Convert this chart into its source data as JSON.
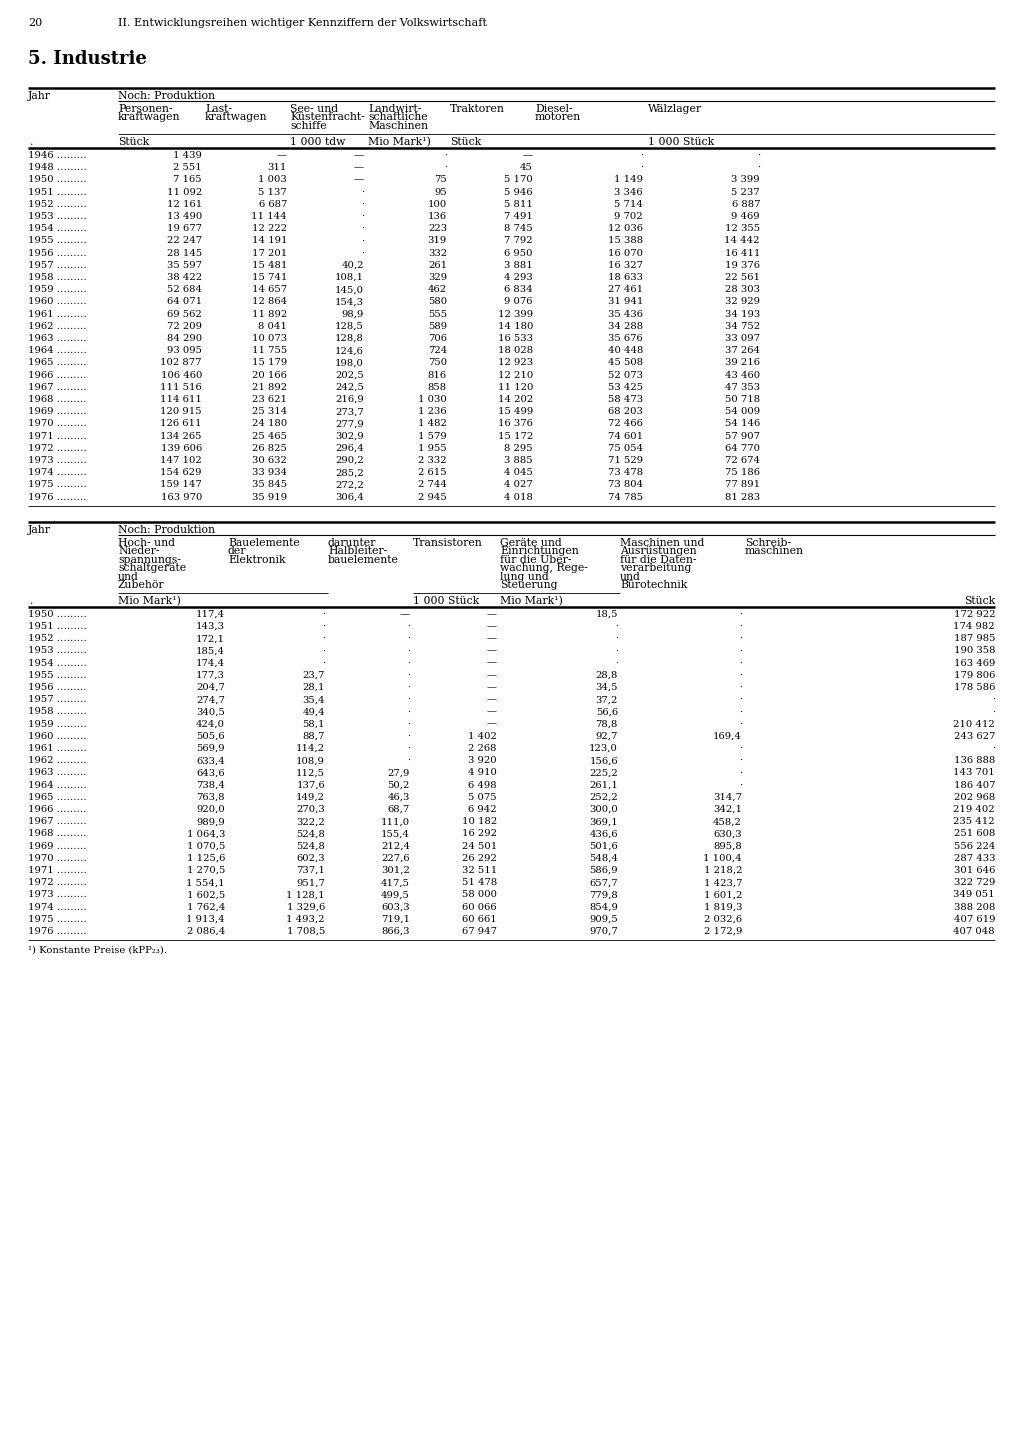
{
  "page_number": "20",
  "page_header": "II. Entwicklungsreihen wichtiger Kennziffern der Volkswirtschaft",
  "section_title": "5. Industrie",
  "table1_rows": [
    [
      "1946",
      "1 439",
      "—",
      "—",
      "·",
      "—",
      "·",
      "·"
    ],
    [
      "1948",
      "2 551",
      "311",
      "—",
      "·",
      "45",
      "·",
      "·"
    ],
    [
      "1950",
      "7 165",
      "1 003",
      "—",
      "75",
      "5 170",
      "1 149",
      "3 399"
    ],
    [
      "1951",
      "11 092",
      "5 137",
      "·",
      "95",
      "5 946",
      "3 346",
      "5 237"
    ],
    [
      "1952",
      "12 161",
      "6 687",
      "·",
      "100",
      "5 811",
      "5 714",
      "6 887"
    ],
    [
      "1953",
      "13 490",
      "11 144",
      "·",
      "136",
      "7 491",
      "9 702",
      "9 469"
    ],
    [
      "1954",
      "19 677",
      "12 222",
      "·",
      "223",
      "8 745",
      "12 036",
      "12 355"
    ],
    [
      "1955",
      "22 247",
      "14 191",
      "·",
      "319",
      "7 792",
      "15 388",
      "14 442"
    ],
    [
      "1956",
      "28 145",
      "17 201",
      "·",
      "332",
      "6 950",
      "16 070",
      "16 411"
    ],
    [
      "1957",
      "35 597",
      "15 481",
      "40,2",
      "261",
      "3 881",
      "16 327",
      "19 376"
    ],
    [
      "1958",
      "38 422",
      "15 741",
      "108,1",
      "329",
      "4 293",
      "18 633",
      "22 561"
    ],
    [
      "1959",
      "52 684",
      "14 657",
      "145,0",
      "462",
      "6 834",
      "27 461",
      "28 303"
    ],
    [
      "1960",
      "64 071",
      "12 864",
      "154,3",
      "580",
      "9 076",
      "31 941",
      "32 929"
    ],
    [
      "1961",
      "69 562",
      "11 892",
      "98,9",
      "555",
      "12 399",
      "35 436",
      "34 193"
    ],
    [
      "1962",
      "72 209",
      "8 041",
      "128,5",
      "589",
      "14 180",
      "34 288",
      "34 752"
    ],
    [
      "1963",
      "84 290",
      "10 073",
      "128,8",
      "706",
      "16 533",
      "35 676",
      "33 097"
    ],
    [
      "1964",
      "93 095",
      "11 755",
      "124,6",
      "724",
      "18 028",
      "40 448",
      "37 264"
    ],
    [
      "1965",
      "102 877",
      "15 179",
      "198,0",
      "750",
      "12 923",
      "45 508",
      "39 216"
    ],
    [
      "1966",
      "106 460",
      "20 166",
      "202,5",
      "816",
      "12 210",
      "52 073",
      "43 460"
    ],
    [
      "1967",
      "111 516",
      "21 892",
      "242,5",
      "858",
      "11 120",
      "53 425",
      "47 353"
    ],
    [
      "1968",
      "114 611",
      "23 621",
      "216,9",
      "1 030",
      "14 202",
      "58 473",
      "50 718"
    ],
    [
      "1969",
      "120 915",
      "25 314",
      "273,7",
      "1 236",
      "15 499",
      "68 203",
      "54 009"
    ],
    [
      "1970",
      "126 611",
      "24 180",
      "277,9",
      "1 482",
      "16 376",
      "72 466",
      "54 146"
    ],
    [
      "1971",
      "134 265",
      "25 465",
      "302,9",
      "1 579",
      "15 172",
      "74 601",
      "57 907"
    ],
    [
      "1972",
      "139 606",
      "26 825",
      "296,4",
      "1 955",
      "8 295",
      "75 054",
      "64 770"
    ],
    [
      "1973",
      "147 102",
      "30 632",
      "290,2",
      "2 332",
      "3 885",
      "71 529",
      "72 674"
    ],
    [
      "1974",
      "154 629",
      "33 934",
      "285,2",
      "2 615",
      "4 045",
      "73 478",
      "75 186"
    ],
    [
      "1975",
      "159 147",
      "35 845",
      "272,2",
      "2 744",
      "4 027",
      "73 804",
      "77 891"
    ],
    [
      "1976",
      "163 970",
      "35 919",
      "306,4",
      "2 945",
      "4 018",
      "74 785",
      "81 283"
    ]
  ],
  "table2_rows": [
    [
      "1950",
      "117,4",
      "·",
      "—",
      "—",
      "18,5",
      "·",
      "172 922"
    ],
    [
      "1951",
      "143,3",
      "·",
      "·",
      "—",
      "·",
      "·",
      "174 982"
    ],
    [
      "1952",
      "172,1",
      "·",
      "·",
      "—",
      "·",
      "·",
      "187 985"
    ],
    [
      "1953",
      "185,4",
      "·",
      "·",
      "—",
      "·",
      "·",
      "190 358"
    ],
    [
      "1954",
      "174,4",
      "·",
      "·",
      "—",
      "·",
      "·",
      "163 469"
    ],
    [
      "1955",
      "177,3",
      "23,7",
      "·",
      "—",
      "28,8",
      "·",
      "179 806"
    ],
    [
      "1956",
      "204,7",
      "28,1",
      "·",
      "—",
      "34,5",
      "·",
      "178 586"
    ],
    [
      "1957",
      "274,7",
      "35,4",
      "·",
      "—",
      "37,2",
      "·",
      "·"
    ],
    [
      "1958",
      "340,5",
      "49,4",
      "·",
      "—",
      "56,6",
      "·",
      "·"
    ],
    [
      "1959",
      "424,0",
      "58,1",
      "·",
      "—",
      "78,8",
      "·",
      "210 412"
    ],
    [
      "1960",
      "505,6",
      "88,7",
      "·",
      "1 402",
      "92,7",
      "169,4",
      "243 627"
    ],
    [
      "1961",
      "569,9",
      "114,2",
      "·",
      "2 268",
      "123,0",
      "·",
      "·"
    ],
    [
      "1962",
      "633,4",
      "108,9",
      "·",
      "3 920",
      "156,6",
      "·",
      "136 888"
    ],
    [
      "1963",
      "643,6",
      "112,5",
      "27,9",
      "4 910",
      "225,2",
      "·",
      "143 701"
    ],
    [
      "1964",
      "738,4",
      "137,6",
      "50,2",
      "6 498",
      "261,1",
      "·",
      "186 407"
    ],
    [
      "1965",
      "763,8",
      "149,2",
      "46,3",
      "5 075",
      "252,2",
      "314,7",
      "202 968"
    ],
    [
      "1966",
      "920,0",
      "270,3",
      "68,7",
      "6 942",
      "300,0",
      "342,1",
      "219 402"
    ],
    [
      "1967",
      "989,9",
      "322,2",
      "111,0",
      "10 182",
      "369,1",
      "458,2",
      "235 412"
    ],
    [
      "1968",
      "1 064,3",
      "524,8",
      "155,4",
      "16 292",
      "436,6",
      "630,3",
      "251 608"
    ],
    [
      "1969",
      "1 070,5",
      "524,8",
      "212,4",
      "24 501",
      "501,6",
      "895,8",
      "556 224"
    ],
    [
      "1970",
      "1 125,6",
      "602,3",
      "227,6",
      "26 292",
      "548,4",
      "1 100,4",
      "287 433"
    ],
    [
      "1971",
      "1 270,5",
      "737,1",
      "301,2",
      "32 511",
      "586,9",
      "1 218,2",
      "301 646"
    ],
    [
      "1972",
      "1 554,1",
      "951,7",
      "417,5",
      "51 478",
      "657,7",
      "1 423,7",
      "322 729"
    ],
    [
      "1973",
      "1 602,5",
      "1 128,1",
      "499,5",
      "58 000",
      "779,8",
      "1 601,2",
      "349 051"
    ],
    [
      "1974",
      "1 762,4",
      "1 329,6",
      "603,3",
      "60 066",
      "854,9",
      "1 819,3",
      "388 208"
    ],
    [
      "1975",
      "1 913,4",
      "1 493,2",
      "719,1",
      "60 661",
      "909,5",
      "2 032,6",
      "407 619"
    ],
    [
      "1976",
      "2 086,4",
      "1 708,5",
      "866,3",
      "67 947",
      "970,7",
      "2 172,9",
      "407 048"
    ]
  ],
  "footnote": "¹) Konstante Preise (kPP₂₃)."
}
